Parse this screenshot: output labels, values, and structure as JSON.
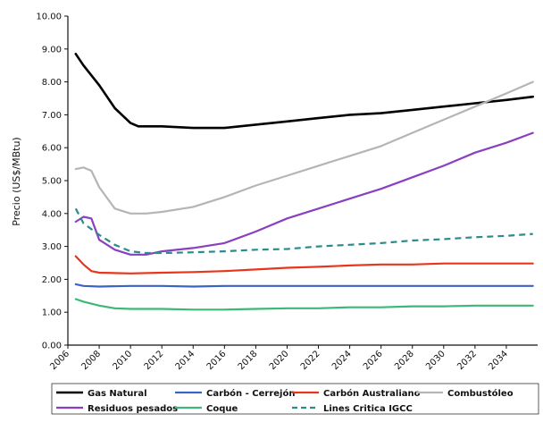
{
  "chart_data": {
    "type": "line",
    "title": "",
    "xlabel": "",
    "ylabel": "Precio (US$/MBtu)",
    "xlim": [
      2006,
      2036
    ],
    "ylim": [
      0,
      10
    ],
    "grid": false,
    "legend_position": "bottom",
    "x_ticks": [
      "2006",
      "2008",
      "2010",
      "2012",
      "2014",
      "2016",
      "2018",
      "2020",
      "2022",
      "2024",
      "2026",
      "2028",
      "2030",
      "2032",
      "2034"
    ],
    "y_ticks": [
      "0.00",
      "1.00",
      "2.00",
      "3.00",
      "4.00",
      "5.00",
      "6.00",
      "7.00",
      "8.00",
      "9.00",
      "10.00"
    ],
    "series": [
      {
        "name": "Gas Natural",
        "color": "#000000",
        "style": "solid",
        "x": [
          2006.5,
          2007,
          2008,
          2009,
          2010,
          2010.5,
          2012,
          2014,
          2016,
          2018,
          2020,
          2022,
          2024,
          2026,
          2028,
          2030,
          2032,
          2034,
          2035.7
        ],
        "values": [
          8.85,
          8.5,
          7.9,
          7.2,
          6.75,
          6.65,
          6.65,
          6.6,
          6.6,
          6.7,
          6.8,
          6.9,
          7.0,
          7.05,
          7.15,
          7.25,
          7.35,
          7.45,
          7.55
        ]
      },
      {
        "name": "Carbón - Cerrejón",
        "color": "#3a63c8",
        "style": "solid",
        "x": [
          2006.5,
          2007,
          2008,
          2010,
          2012,
          2014,
          2016,
          2018,
          2020,
          2022,
          2024,
          2026,
          2028,
          2030,
          2032,
          2034,
          2035.7
        ],
        "values": [
          1.85,
          1.8,
          1.78,
          1.8,
          1.8,
          1.78,
          1.8,
          1.8,
          1.8,
          1.8,
          1.8,
          1.8,
          1.8,
          1.8,
          1.8,
          1.8,
          1.8
        ]
      },
      {
        "name": "Carbón Australiano",
        "color": "#e8361c",
        "style": "solid",
        "x": [
          2006.5,
          2007,
          2007.5,
          2008,
          2010,
          2012,
          2014,
          2016,
          2018,
          2020,
          2022,
          2024,
          2026,
          2028,
          2030,
          2032,
          2034,
          2035.7
        ],
        "values": [
          2.7,
          2.45,
          2.25,
          2.2,
          2.18,
          2.2,
          2.22,
          2.25,
          2.3,
          2.35,
          2.38,
          2.42,
          2.45,
          2.45,
          2.48,
          2.48,
          2.48,
          2.48
        ]
      },
      {
        "name": "Combustóleo",
        "color": "#b5b5b5",
        "style": "solid",
        "x": [
          2006.5,
          2007,
          2007.5,
          2008,
          2009,
          2010,
          2011,
          2012,
          2014,
          2016,
          2018,
          2020,
          2022,
          2024,
          2026,
          2028,
          2030,
          2032,
          2034,
          2035.7
        ],
        "values": [
          5.35,
          5.4,
          5.3,
          4.8,
          4.15,
          4.0,
          4.0,
          4.05,
          4.2,
          4.5,
          4.85,
          5.15,
          5.45,
          5.75,
          6.05,
          6.45,
          6.85,
          7.25,
          7.65,
          8.0
        ]
      },
      {
        "name": "Residuos pesados",
        "color": "#8a3fc0",
        "style": "solid",
        "x": [
          2006.5,
          2007,
          2007.5,
          2008,
          2009,
          2010,
          2011,
          2012,
          2014,
          2016,
          2018,
          2020,
          2022,
          2024,
          2026,
          2028,
          2030,
          2032,
          2034,
          2035.7
        ],
        "values": [
          3.75,
          3.9,
          3.85,
          3.2,
          2.9,
          2.75,
          2.75,
          2.85,
          2.95,
          3.1,
          3.45,
          3.85,
          4.15,
          4.45,
          4.75,
          5.1,
          5.45,
          5.85,
          6.15,
          6.45
        ]
      },
      {
        "name": "Coque",
        "color": "#3cb878",
        "style": "solid",
        "x": [
          2006.5,
          2007,
          2008,
          2009,
          2010,
          2012,
          2014,
          2016,
          2018,
          2020,
          2022,
          2024,
          2026,
          2028,
          2030,
          2032,
          2034,
          2035.7
        ],
        "values": [
          1.4,
          1.32,
          1.2,
          1.12,
          1.1,
          1.1,
          1.08,
          1.08,
          1.1,
          1.12,
          1.12,
          1.15,
          1.15,
          1.18,
          1.18,
          1.2,
          1.2,
          1.2
        ]
      },
      {
        "name": "Lines Critica IGCC",
        "color": "#2e8b8b",
        "style": "dashed",
        "x": [
          2006.5,
          2007,
          2008,
          2009,
          2010,
          2011,
          2012,
          2014,
          2016,
          2018,
          2020,
          2022,
          2024,
          2026,
          2028,
          2030,
          2032,
          2034,
          2035.7
        ],
        "values": [
          4.15,
          3.7,
          3.35,
          3.05,
          2.85,
          2.8,
          2.8,
          2.82,
          2.85,
          2.9,
          2.92,
          3.0,
          3.05,
          3.1,
          3.18,
          3.22,
          3.28,
          3.32,
          3.38
        ]
      }
    ]
  }
}
